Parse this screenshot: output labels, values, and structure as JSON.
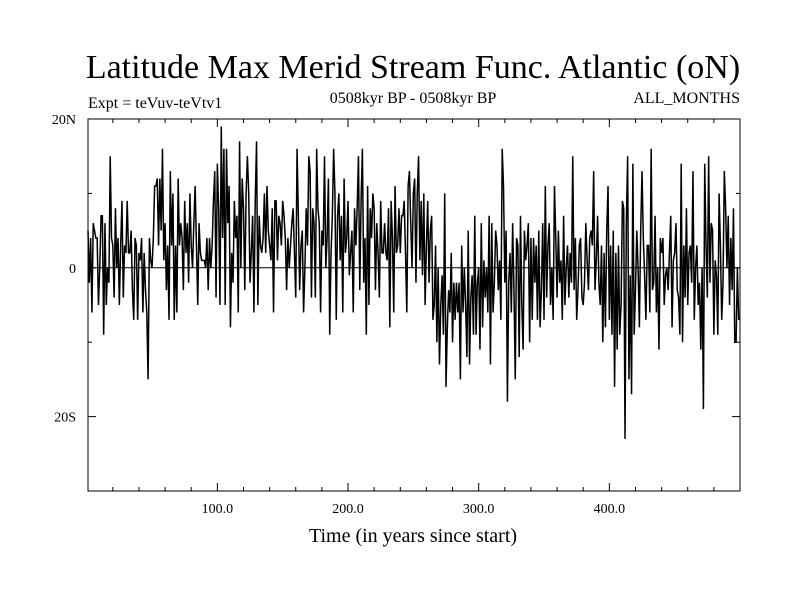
{
  "chart_data": {
    "type": "line",
    "title": "Latitude Max Merid Stream Func. Atlantic (oN)",
    "left_subtitle": "Expt = teVuv-teVtv1",
    "center_subtitle": "0508kyr BP - 0508kyr BP",
    "right_subtitle": "ALL_MONTHS",
    "xlabel": "Time (in years since start)",
    "ylabel": "",
    "xlim": [
      1,
      500
    ],
    "ylim": [
      -30,
      20
    ],
    "x_ticks": [
      100,
      200,
      300,
      400
    ],
    "x_tick_labels": [
      "100.0",
      "200.0",
      "300.0",
      "400.0"
    ],
    "y_ticks": [
      20,
      0,
      -20
    ],
    "y_tick_labels": [
      "20N",
      "0",
      "20S"
    ],
    "grid": false,
    "line_color": "#000000",
    "series": [
      {
        "x_start": 1,
        "x_step": 1,
        "values": [
          5,
          -2,
          4,
          -6,
          6,
          5,
          4,
          4,
          -5,
          0,
          7,
          7,
          -9,
          6,
          -5,
          0,
          -2,
          15,
          4,
          3,
          -4,
          8,
          0,
          4,
          -5,
          3,
          9,
          -4,
          3,
          2,
          9,
          2,
          2,
          5,
          -3,
          -7,
          4,
          3,
          -7,
          2,
          1,
          4,
          -6,
          2,
          -3,
          -6,
          -15,
          4,
          1,
          0,
          4,
          11,
          11,
          12,
          3,
          12,
          5,
          16,
          1,
          6,
          -3,
          3,
          -7,
          13,
          3,
          10,
          -7,
          3,
          -6,
          12,
          3,
          6,
          4,
          -3,
          9,
          2,
          6,
          -2,
          10,
          3,
          0,
          6,
          11,
          3,
          -5,
          6,
          2,
          1,
          1,
          1,
          0,
          4,
          -3,
          4,
          0,
          3,
          9,
          13,
          -4,
          14,
          8,
          -5,
          19,
          4,
          16,
          -5,
          16,
          6,
          11,
          -8,
          2,
          -2,
          9,
          4,
          7,
          -6,
          17,
          0,
          12,
          8,
          -3,
          10,
          15,
          10,
          -2,
          2,
          7,
          -6,
          9,
          17,
          -5,
          7,
          3,
          2,
          4,
          10,
          2,
          11,
          5,
          3,
          1,
          8,
          -6,
          9,
          9,
          1,
          7,
          6,
          3,
          9,
          7,
          4,
          -3,
          4,
          0,
          3,
          6,
          8,
          2,
          -4,
          16,
          7,
          -3,
          3,
          5,
          -6,
          0,
          8,
          3,
          15,
          13,
          -4,
          8,
          6,
          -4,
          16,
          8,
          6,
          -6,
          5,
          3,
          15,
          0,
          4,
          12,
          -9,
          2,
          7,
          16,
          10,
          -7,
          7,
          10,
          1,
          7,
          -6,
          12,
          2,
          4,
          9,
          -1,
          2,
          5,
          -6,
          8,
          3,
          8,
          15,
          -3,
          9,
          16,
          -2,
          4,
          -9,
          11,
          -5,
          8,
          4,
          10,
          8,
          -3,
          6,
          2,
          -4,
          9,
          2,
          2,
          6,
          2,
          1,
          8,
          -8,
          9,
          4,
          -6,
          11,
          2,
          3,
          8,
          2,
          7,
          7,
          9,
          2,
          -6,
          11,
          13,
          6,
          0,
          10,
          12,
          -2,
          10,
          15,
          1,
          9,
          -1,
          10,
          -5,
          3,
          9,
          -2,
          5,
          7,
          -7,
          -5,
          3,
          -10,
          0,
          -13,
          -5,
          -1,
          -9,
          10,
          -16,
          -8,
          -3,
          -6,
          2,
          -10,
          -2,
          -7,
          -2,
          -6,
          -2,
          -15,
          3,
          -6,
          0,
          -5,
          -12,
          5,
          -13,
          -4,
          -1,
          -9,
          7,
          -9,
          -2,
          0,
          -11,
          6,
          -8,
          1,
          -4,
          0,
          -6,
          7,
          -13,
          6,
          -6,
          -2,
          5,
          3,
          -3,
          1,
          -7,
          16,
          11,
          -2,
          5,
          -18,
          -2,
          2,
          -6,
          6,
          -3,
          -15,
          4,
          3,
          -12,
          7,
          -5,
          -11,
          5,
          1,
          3,
          6,
          -10,
          4,
          -7,
          4,
          -2,
          3,
          -7,
          5,
          -8,
          -3,
          6,
          -7,
          11,
          -4,
          3,
          6,
          -5,
          0,
          -7,
          11,
          4,
          -4,
          5,
          -2,
          1,
          -7,
          7,
          -5,
          0,
          3,
          -4,
          2,
          -2,
          15,
          -3,
          4,
          -7,
          -3,
          3,
          4,
          -4,
          -5,
          -2,
          6,
          1,
          -3,
          4,
          5,
          3,
          13,
          -3,
          1,
          7,
          -2,
          -5,
          3,
          -10,
          2,
          -8,
          5,
          11,
          -7,
          3,
          -9,
          5,
          -16,
          2,
          -11,
          3,
          -9,
          -5,
          9,
          8,
          -23,
          6,
          15,
          -15,
          -1,
          -17,
          14,
          -9,
          -3,
          5,
          0,
          -8,
          5,
          13,
          4,
          -1,
          -7,
          3,
          3,
          -6,
          16,
          -3,
          -2,
          7,
          -6,
          0,
          -11,
          4,
          2,
          4,
          -5,
          -1,
          0,
          -3,
          2,
          7,
          -8,
          1,
          2,
          6,
          -3,
          -4,
          -9,
          14,
          -10,
          3,
          -4,
          8,
          -5,
          2,
          3,
          -2,
          13,
          -7,
          0,
          3,
          -5,
          -2,
          -11,
          0,
          -19,
          14,
          3,
          -4,
          15,
          -2,
          6,
          5,
          -9,
          1,
          -1,
          -9,
          10,
          3,
          -7,
          -2,
          13,
          8,
          0,
          7,
          -5,
          4,
          -3,
          8,
          -10,
          -10,
          0,
          -7
        ]
      }
    ]
  }
}
